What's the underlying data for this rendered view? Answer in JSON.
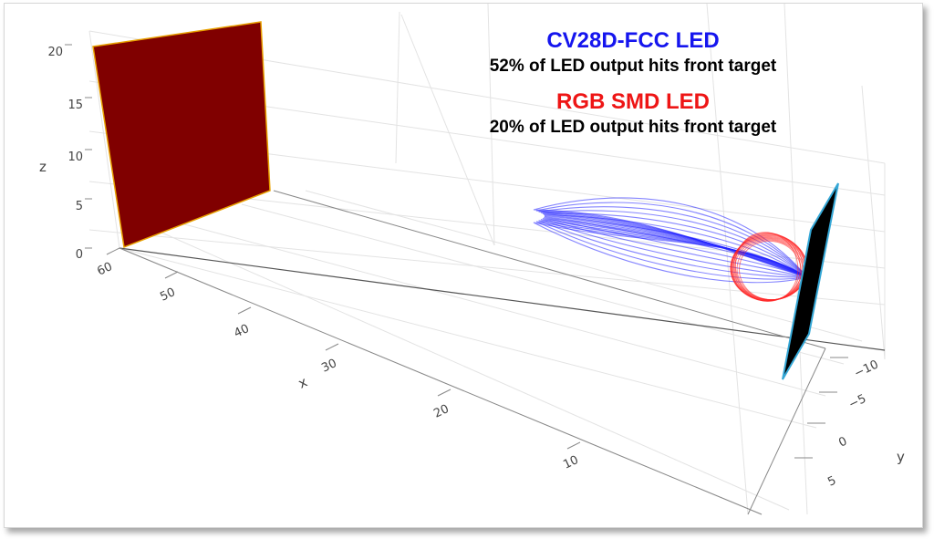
{
  "chart_data": {
    "type": "scatter3d",
    "axes": {
      "x": {
        "title": "x",
        "ticks": [
          "60",
          "50",
          "40",
          "30",
          "20",
          "10"
        ]
      },
      "y": {
        "title": "y",
        "ticks": [
          "−10",
          "−5",
          "0",
          "5"
        ]
      },
      "z": {
        "title": "z",
        "ticks": [
          "0",
          "5",
          "10",
          "15",
          "20"
        ]
      }
    },
    "surfaces": [
      {
        "name": "back-target",
        "color": "#800000",
        "edge": "#e8a000"
      },
      {
        "name": "front-target",
        "color": "#000000",
        "edge": "#35a7d6"
      }
    ],
    "series": [
      {
        "name": "CV28D-FCC LED",
        "color": "#2020ff",
        "shape": "narrow-lobe"
      },
      {
        "name": "RGB SMD LED",
        "color": "#ff2020",
        "shape": "wide-lobe"
      }
    ],
    "annotations": [
      {
        "heading": "CV28D-FCC LED",
        "heading_color": "#1515ee",
        "text": "52% of LED output hits front target"
      },
      {
        "heading": "RGB SMD LED",
        "heading_color": "#ee1515",
        "text": "20% of LED output hits front target"
      }
    ]
  }
}
